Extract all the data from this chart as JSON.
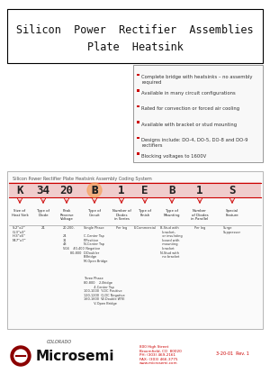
{
  "title_line1": "Silicon  Power  Rectifier  Assemblies",
  "title_line2": "Plate  Heatsink",
  "features": [
    "Complete bridge with heatsinks – no assembly required",
    "Available in many circuit configurations",
    "Rated for convection or forced air cooling",
    "Available with bracket or stud mounting",
    "Designs include: DO-4, DO-5, DO-8 and DO-9 rectifiers",
    "Blocking voltages to 1600V"
  ],
  "coding_title": "Silicon Power Rectifier Plate Heatsink Assembly Coding System",
  "code_letters": [
    "K",
    "34",
    "20",
    "B",
    "1",
    "E",
    "B",
    "1",
    "S"
  ],
  "col_headers": [
    "Size of\nHeat Sink",
    "Type of\nDiode",
    "Peak\nReverse\nVoltage",
    "Type of\nCircuit",
    "Number of\nDiodes\nin Series",
    "Type of\nFinish",
    "Type of\nMounting",
    "Number\nof Diodes\nin Parallel",
    "Special\nFeature"
  ],
  "col1_data": [
    "S-2\"x2\"\nG-3\"x3\"\nH-3\"x5\"\nM-7\"x7\"",
    "",
    "21\n\n20-200-\n\n24\n31\n43\n504    40-400\n       80-800",
    "Single Phase\n\nC-Center Tap\nP-Positive\nN-Center Tap\n  Negative\nD-Doubler\nB-Bridge\nM-Open Bridge\n\n\nThree Phase\n\n80-800    2-Bridge\n          4-Center Tap\n100-1000  Y-DC Positive\n120-1200  Q-DC Negative\n160-1600  W-Double WYE\n          V-Open Bridge",
    "Per leg",
    "E-Commercial",
    "B-Stud with\n  bracket,\n  or insulating\n  board with\n  mounting\n  bracket\nN-Stud with\n  no bracket",
    "Per leg",
    "Surge\nSuppressor"
  ],
  "bg_color": "#ffffff",
  "border_color": "#000000",
  "red_color": "#cc0000",
  "dark_red": "#8b0000",
  "title_bg": "#ffffff",
  "table_bg": "#ffffff",
  "features_box_color": "#ffffff",
  "rev_text": "3-20-01  Rev. 1",
  "address_text": "800 High Street\nBroomfield, CO  80020\nPH: (303) 469-2161\nFAX: (303) 466-3775\nwww.microsemi.com",
  "colorado_text": "COLORADO"
}
